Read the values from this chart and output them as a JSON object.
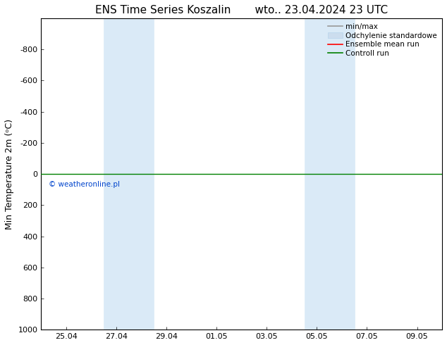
{
  "title": "ENS Time Series Koszalin       wto.. 23.04.2024 23 UTC",
  "ylabel": "Min Temperature 2m (ᵒC)",
  "xlim": [
    0,
    16
  ],
  "ylim": [
    -1000,
    1000
  ],
  "yticks": [
    -800,
    -600,
    -400,
    -200,
    0,
    200,
    400,
    600,
    800,
    1000
  ],
  "xtick_labels": [
    "25.04",
    "27.04",
    "29.04",
    "01.05",
    "03.05",
    "05.05",
    "07.05",
    "09.05"
  ],
  "xtick_positions": [
    1.0,
    3.0,
    5.0,
    7.0,
    9.0,
    11.0,
    13.0,
    15.0
  ],
  "shaded_columns": [
    {
      "x_start": 2.5,
      "x_end": 4.5
    },
    {
      "x_start": 10.5,
      "x_end": 12.5
    }
  ],
  "shaded_color": "#daeaf7",
  "shaded_edge_color": "#b8d4ec",
  "control_run_y": 0.0,
  "ensemble_mean_y": 0.0,
  "control_run_color": "#008000",
  "ensemble_mean_color": "#ff0000",
  "minmax_color": "#999999",
  "std_color": "#ccddee",
  "copyright_text": "© weatheronline.pl",
  "copyright_color": "#0044cc",
  "legend_labels": [
    "min/max",
    "Odchylenie standardowe",
    "Ensemble mean run",
    "Controll run"
  ],
  "background_color": "#ffffff",
  "plot_bg_color": "#ffffff",
  "title_fontsize": 11,
  "axis_fontsize": 9,
  "tick_fontsize": 8,
  "legend_fontsize": 7.5
}
